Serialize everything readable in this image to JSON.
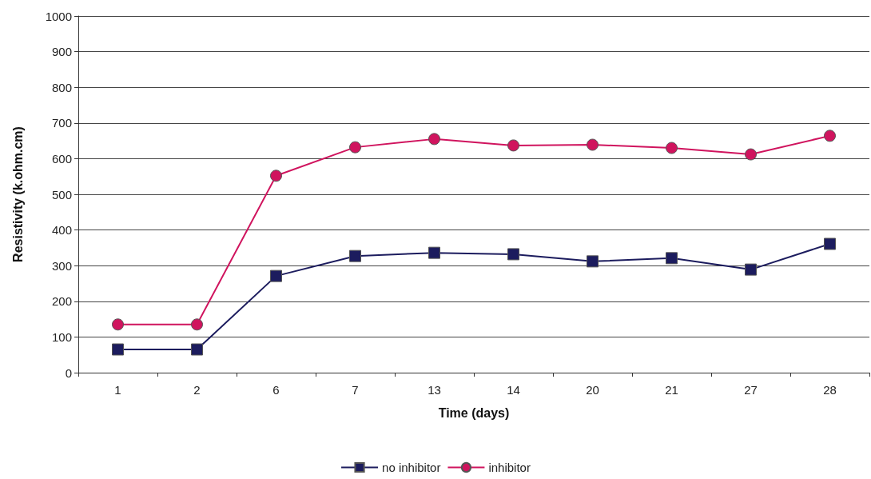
{
  "chart_data": {
    "type": "line",
    "xlabel": "Time (days)",
    "ylabel": "Resistivity (k.ohm.cm)",
    "categories": [
      "1",
      "2",
      "6",
      "7",
      "13",
      "14",
      "20",
      "21",
      "27",
      "28"
    ],
    "series": [
      {
        "name": "no inhibitor",
        "color": "#1c1c5e",
        "marker": "square",
        "values": [
          65,
          65,
          271,
          327,
          336,
          332,
          312,
          321,
          289,
          361
        ]
      },
      {
        "name": "inhibitor",
        "color": "#d0145e",
        "marker": "circle",
        "values": [
          135,
          135,
          552,
          632,
          655,
          637,
          639,
          630,
          612,
          664
        ]
      }
    ],
    "ylim": [
      0,
      1000
    ],
    "yticks": [
      0,
      100,
      200,
      300,
      400,
      500,
      600,
      700,
      800,
      900,
      1000
    ],
    "grid": "y",
    "legend": "bottom",
    "line_style": "solid"
  }
}
